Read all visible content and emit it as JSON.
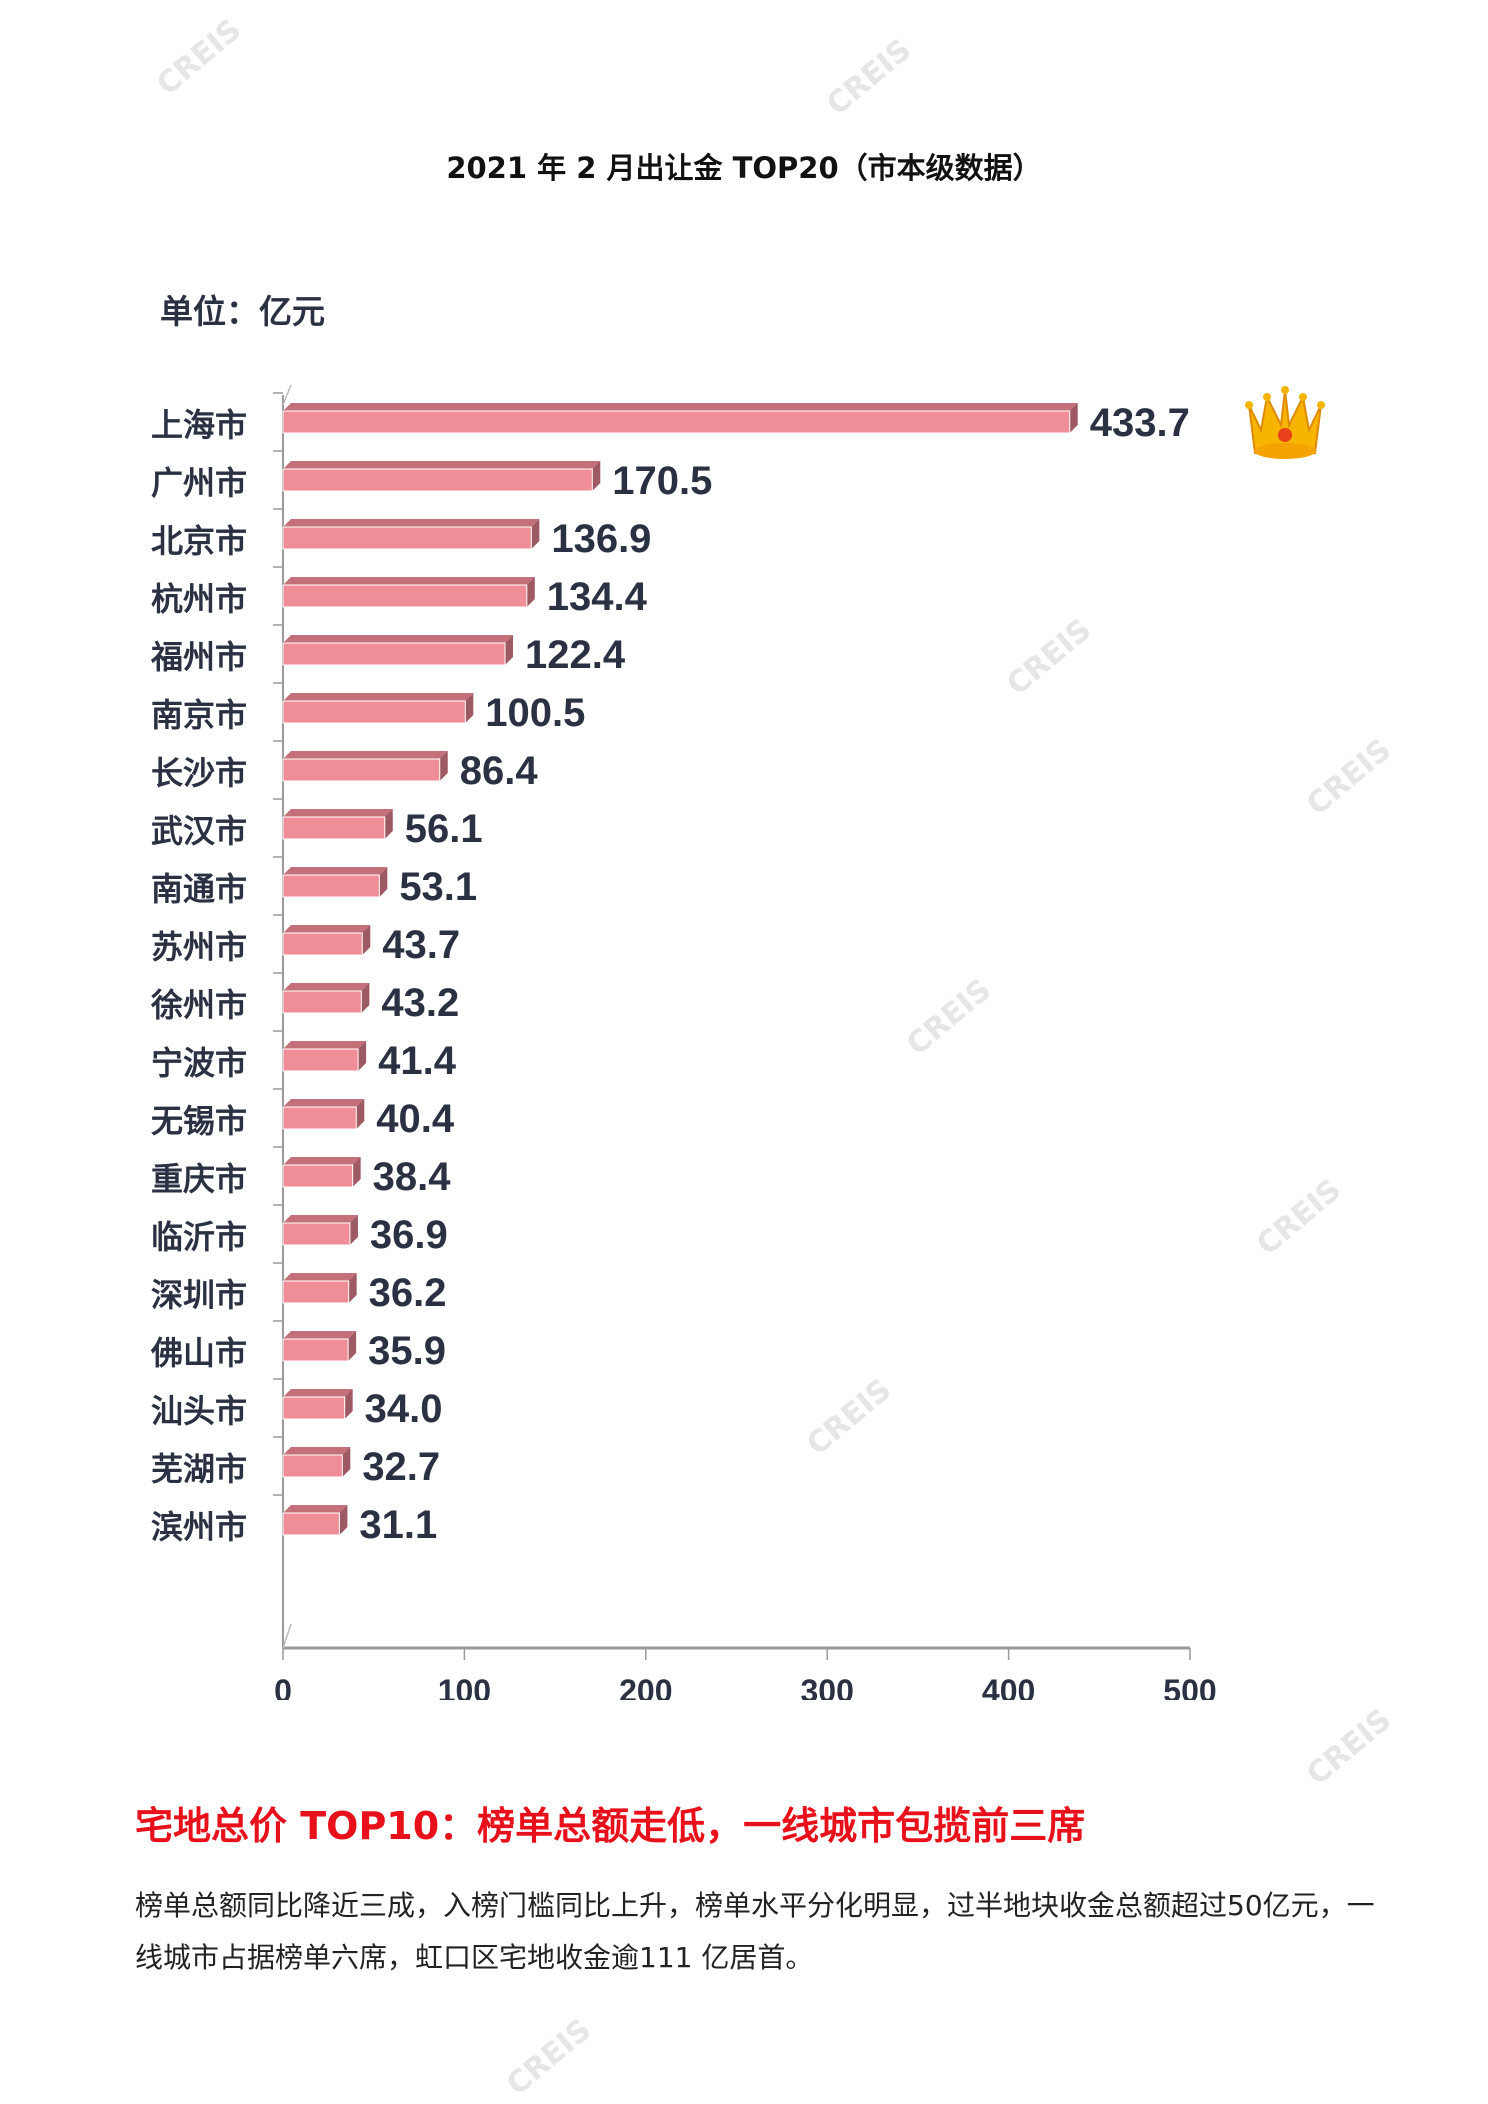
{
  "chart_data": {
    "type": "bar",
    "orientation": "horizontal",
    "title": "2021 年 2 月出让金 TOP20（市本级数据）",
    "unit_label": "单位：亿元",
    "categories": [
      "上海市",
      "广州市",
      "北京市",
      "杭州市",
      "福州市",
      "南京市",
      "长沙市",
      "武汉市",
      "南通市",
      "苏州市",
      "徐州市",
      "宁波市",
      "无锡市",
      "重庆市",
      "临沂市",
      "深圳市",
      "佛山市",
      "汕头市",
      "芜湖市",
      "滨州市"
    ],
    "values": [
      433.7,
      170.5,
      136.9,
      134.4,
      122.4,
      100.5,
      86.4,
      56.1,
      53.1,
      43.7,
      43.2,
      41.4,
      40.4,
      38.4,
      36.9,
      36.2,
      35.9,
      34.0,
      32.7,
      31.1
    ],
    "value_labels": [
      "433.7",
      "170.5",
      "136.9",
      "134.4",
      "122.4",
      "100.5",
      "86.4",
      "56.1",
      "53.1",
      "43.7",
      "43.2",
      "41.4",
      "40.4",
      "38.4",
      "36.9",
      "36.2",
      "35.9",
      "34.0",
      "32.7",
      "31.1"
    ],
    "xlim": [
      0,
      500
    ],
    "xticks": [
      "0",
      "100",
      "200",
      "300",
      "400",
      "500"
    ],
    "grid": false,
    "legend": "none",
    "top_marker_icon": "crown-icon",
    "colors": {
      "bar": "#ef8e97",
      "bar_top": "#c4707a",
      "label": "#2a3142",
      "axis": "#999999"
    }
  },
  "watermark": "CREIS",
  "section": {
    "heading": "宅地总价 TOP10：榜单总额走低，一线城市包揽前三席",
    "paragraph": "榜单总额同比降近三成，入榜门槛同比上升，榜单水平分化明显，过半地块收金总额超过50亿元，一线城市占据榜单六席，虹口区宅地收金逾111 亿居首。"
  }
}
